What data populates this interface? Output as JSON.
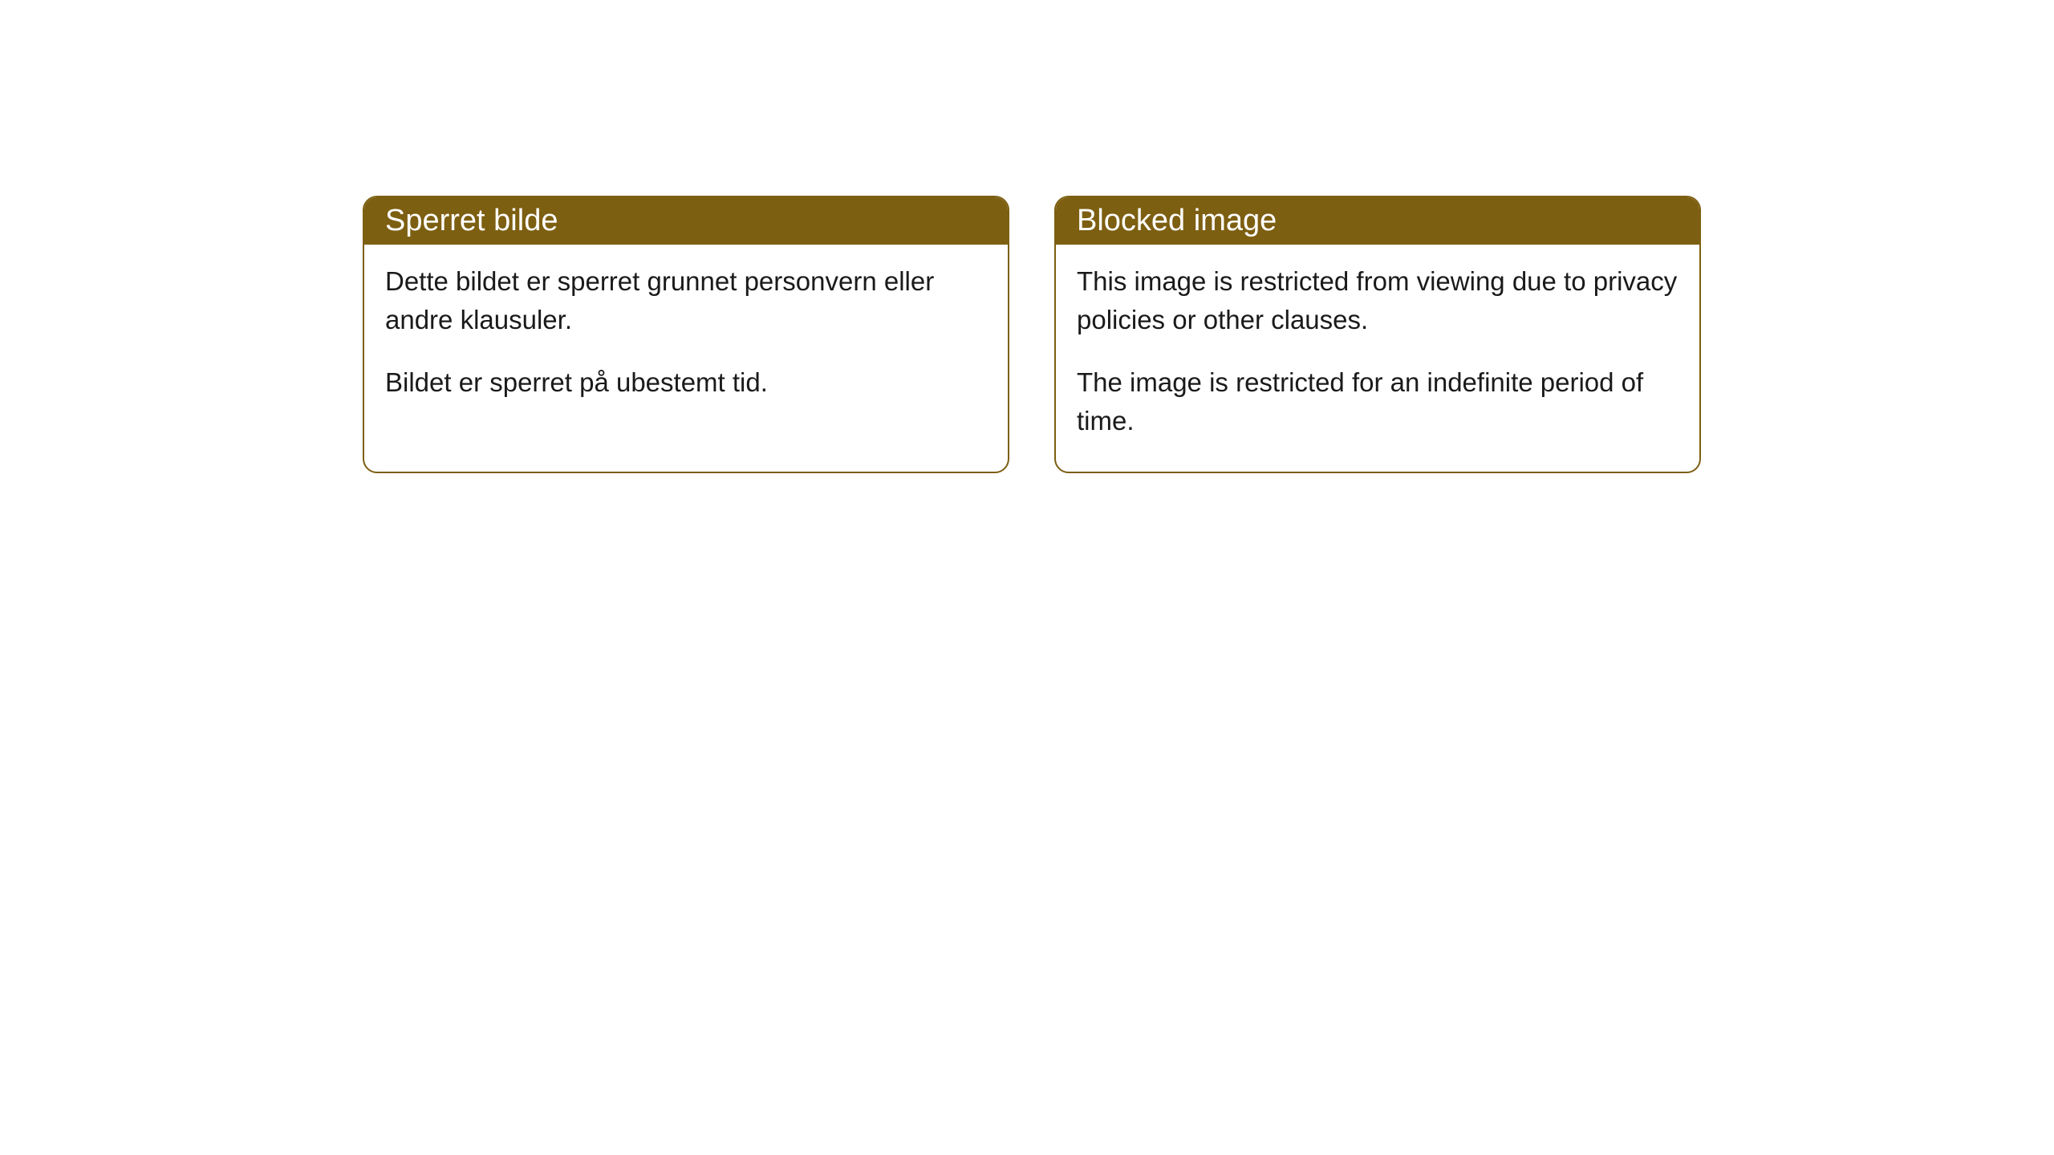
{
  "cards": [
    {
      "header": "Sperret bilde",
      "paragraphs": [
        "Dette bildet er sperret grunnet personvern eller andre klausuler.",
        "Bildet er sperret på ubestemt tid."
      ]
    },
    {
      "header": "Blocked image",
      "paragraphs": [
        "This image is restricted from viewing due to privacy policies or other clauses.",
        "The image is restricted for an indefinite period of time."
      ]
    }
  ],
  "style": {
    "header_bg_color": "#7d5f12",
    "header_text_color": "#ffffff",
    "border_color": "#7d5f12",
    "body_text_color": "#1a1a1a",
    "background_color": "#ffffff",
    "border_radius": 18,
    "header_fontsize": 38,
    "body_fontsize": 33
  }
}
